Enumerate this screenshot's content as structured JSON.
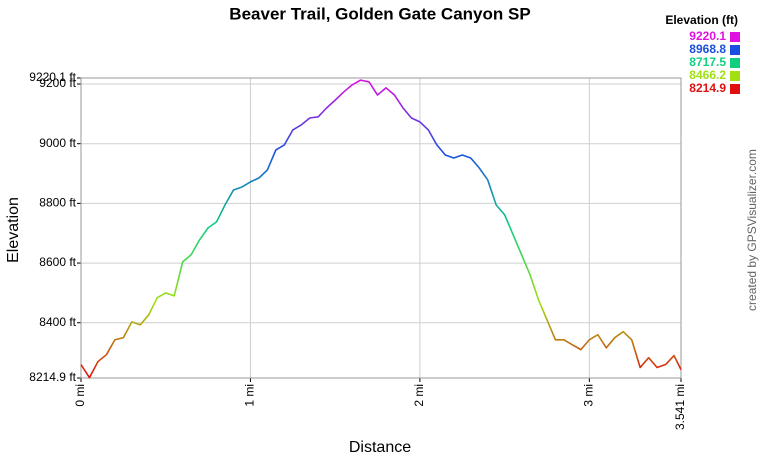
{
  "chart_data": {
    "type": "line",
    "title": "Beaver Trail, Golden Gate Canyon SP",
    "x_label": "Distance",
    "y_label": "Elevation",
    "credit": "created by GPSVisualizer.com",
    "x": [
      0,
      0.05,
      0.1,
      0.15,
      0.2,
      0.25,
      0.3,
      0.35,
      0.4,
      0.45,
      0.5,
      0.55,
      0.6,
      0.65,
      0.7,
      0.75,
      0.8,
      0.85,
      0.9,
      0.95,
      1.0,
      1.05,
      1.1,
      1.15,
      1.2,
      1.25,
      1.3,
      1.35,
      1.4,
      1.45,
      1.5,
      1.55,
      1.6,
      1.65,
      1.7,
      1.75,
      1.8,
      1.85,
      1.9,
      1.95,
      2.0,
      2.05,
      2.1,
      2.15,
      2.2,
      2.25,
      2.3,
      2.35,
      2.4,
      2.45,
      2.5,
      2.55,
      2.6,
      2.65,
      2.7,
      2.75,
      2.8,
      2.85,
      2.9,
      2.95,
      3.0,
      3.05,
      3.1,
      3.15,
      3.2,
      3.25,
      3.3,
      3.35,
      3.4,
      3.45,
      3.5,
      3.541
    ],
    "values": [
      8260,
      8216,
      8270,
      8293,
      8343,
      8350,
      8403,
      8393,
      8427,
      8484,
      8500,
      8490,
      8604,
      8628,
      8678,
      8718,
      8738,
      8795,
      8845,
      8855,
      8872,
      8885,
      8912,
      8979,
      8996,
      9046,
      9063,
      9086,
      9090,
      9120,
      9146,
      9173,
      9197,
      9213,
      9207,
      9163,
      9187,
      9163,
      9120,
      9086,
      9073,
      9046,
      8996,
      8962,
      8952,
      8962,
      8952,
      8919,
      8879,
      8795,
      8762,
      8695,
      8628,
      8561,
      8477,
      8410,
      8343,
      8343,
      8326,
      8310,
      8343,
      8360,
      8316,
      8350,
      8370,
      8343,
      8250,
      8283,
      8250,
      8260,
      8290,
      8243
    ],
    "xlim": [
      0,
      3.541
    ],
    "xticks": [
      {
        "value": 0,
        "label": "0 mi"
      },
      {
        "value": 1,
        "label": "1 mi"
      },
      {
        "value": 2,
        "label": "2 mi"
      },
      {
        "value": 3,
        "label": "3 mi"
      },
      {
        "value": 3.541,
        "label": "3.541 mi"
      }
    ],
    "ylim": [
      8214.9,
      9220.1
    ],
    "yticks": [
      {
        "value": 8214.9,
        "label": "8214.9 ft"
      },
      {
        "value": 8400,
        "label": "8400 ft"
      },
      {
        "value": 8600,
        "label": "8600 ft"
      },
      {
        "value": 8800,
        "label": "8800 ft"
      },
      {
        "value": 9000,
        "label": "9000 ft"
      },
      {
        "value": 9200,
        "label": "9200 ft"
      },
      {
        "value": 9220.1,
        "label": "9220.1 ft"
      }
    ],
    "grid": true,
    "color_scale": {
      "title": "Elevation (ft)",
      "stops": [
        9220.1,
        8968.8,
        8717.5,
        8466.2,
        8214.9
      ],
      "colors": [
        "#e010e0",
        "#1a50e0",
        "#10d080",
        "#a0e010",
        "#e01010"
      ]
    }
  }
}
